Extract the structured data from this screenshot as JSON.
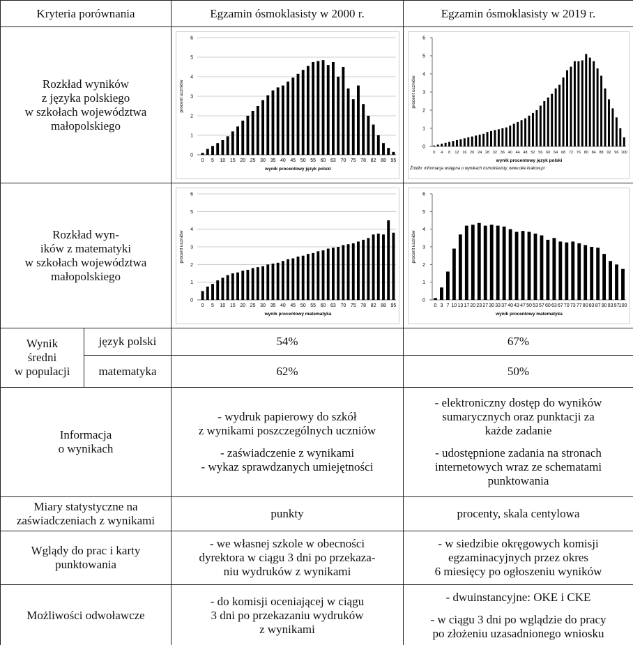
{
  "table": {
    "header": [
      "Kryteria porównania",
      "Egzamin ósmoklasisty w 2000 r.",
      "Egzamin ósmoklasisty w 2019 r."
    ],
    "chart_rows": [
      {
        "label": [
          "Rozkład wyników",
          "z języka polskiego",
          "w szkołach województwa",
          "małopolskiego"
        ]
      },
      {
        "label": [
          "Rozkład wyn-",
          "ików z matematyki",
          "w szkołach województwa",
          "małopolskiego"
        ]
      }
    ],
    "average": {
      "label": [
        "Wynik",
        "średni",
        "w populacji"
      ],
      "rows": [
        {
          "label": "język polski",
          "v2000": "54%",
          "v2019": "67%"
        },
        {
          "label": "matematyka",
          "v2000": "62%",
          "v2019": "50%"
        }
      ]
    },
    "rows": [
      {
        "label": [
          "Informacja",
          "o wynikach"
        ],
        "c2000": [
          [
            "- wydruk papierowy do szkół",
            "z wynikami poszczególnych uczniów"
          ],
          [
            "- zaświadczenie z wynikami",
            "- wykaz sprawdzanych umiejętności"
          ]
        ],
        "c2019": [
          [
            "- elektroniczny dostęp do wyników",
            "sumarycznych oraz punktacji za",
            "każde zadanie"
          ],
          [
            "- udostępnione zadania na stronach",
            "internetowych wraz ze schematami",
            "punktowania"
          ]
        ]
      },
      {
        "label": [
          "Miary statystyczne na",
          "zaświadczeniach z wynikami"
        ],
        "c2000": [
          [
            "punkty"
          ]
        ],
        "c2019": [
          [
            "procenty, skala centylowa"
          ]
        ]
      },
      {
        "label": [
          "Wglądy do prac i karty",
          "punktowania"
        ],
        "c2000": [
          [
            "- we własnej szkole w obecności",
            "dyrektora w ciągu 3 dni po przekaza-",
            "niu wydruków z wynikami"
          ]
        ],
        "c2019": [
          [
            "- w siedzibie okręgowych komisji",
            "egzaminacyjnych przez okres",
            "6 miesięcy po ogłoszeniu wyników"
          ]
        ]
      },
      {
        "label": [
          "Możliwości odwoławcze"
        ],
        "c2000": [
          [
            "- do komisji oceniającej w ciągu",
            "3 dni po przekazaniu wydruków",
            "z wynikami"
          ]
        ],
        "c2019": [
          [
            "- dwuinstancyjne: OKE i CKE"
          ],
          [
            "- w ciągu 3 dni po wglądzie do pracy",
            "po złożeniu uzasadnionego wniosku"
          ]
        ]
      }
    ]
  },
  "chart_data": [
    {
      "type": "bar",
      "color": "#000000",
      "grid": true,
      "ylim": [
        0,
        6
      ],
      "yticks": [
        0,
        1,
        2,
        3,
        4,
        5,
        6
      ],
      "y_label": "procent uczniów",
      "x_label": "wynik procentowy język polski",
      "categories": [
        "0",
        null,
        "5",
        null,
        "10",
        null,
        "15",
        null,
        "20",
        null,
        "25",
        null,
        "30",
        null,
        "35",
        null,
        "40",
        null,
        "45",
        null,
        "50",
        null,
        "55",
        null,
        "60",
        null,
        "63",
        null,
        "70",
        null,
        "75",
        null,
        "78",
        null,
        "82",
        null,
        "88",
        null,
        "95"
      ],
      "values": [
        0.1,
        0.3,
        0.45,
        0.6,
        0.75,
        0.95,
        1.2,
        1.45,
        1.75,
        2.0,
        2.25,
        2.5,
        2.8,
        3.05,
        3.3,
        3.45,
        3.55,
        3.75,
        3.95,
        4.15,
        4.35,
        4.55,
        4.75,
        4.8,
        4.85,
        4.6,
        4.75,
        4.0,
        4.5,
        3.4,
        2.85,
        3.55,
        2.6,
        2.0,
        1.55,
        1.0,
        0.6,
        0.35,
        0.15
      ]
    },
    {
      "type": "bar",
      "color": "#000000",
      "grid": false,
      "ylim": [
        0,
        6
      ],
      "yticks": [
        0,
        1,
        2,
        3,
        4,
        5,
        6
      ],
      "y_label": "procent uczniów",
      "x_label": "wynik procentowy język polski",
      "source": "Źródło: informacja wstępna o wynikach ósmoklasisty, www.oke.krakow.pl",
      "categories": [
        "0",
        null,
        "4",
        null,
        "8",
        null,
        "12",
        null,
        "16",
        null,
        "20",
        null,
        "24",
        null,
        "28",
        null,
        "32",
        null,
        "36",
        null,
        "40",
        null,
        "44",
        null,
        "48",
        null,
        "52",
        null,
        "56",
        null,
        "60",
        null,
        "64",
        null,
        "68",
        null,
        "72",
        null,
        "76",
        null,
        "80",
        null,
        "84",
        null,
        "88",
        null,
        "92",
        null,
        "96",
        null,
        "100"
      ],
      "values": [
        0.05,
        0.1,
        0.15,
        0.2,
        0.25,
        0.3,
        0.35,
        0.4,
        0.45,
        0.5,
        0.55,
        0.6,
        0.65,
        0.7,
        0.8,
        0.85,
        0.9,
        0.95,
        1.0,
        1.05,
        1.15,
        1.25,
        1.35,
        1.45,
        1.55,
        1.7,
        1.85,
        2.0,
        2.25,
        2.5,
        2.7,
        2.9,
        3.2,
        3.4,
        3.8,
        4.2,
        4.4,
        4.7,
        4.7,
        4.75,
        5.1,
        4.9,
        4.7,
        4.3,
        3.9,
        3.2,
        2.6,
        2.1,
        1.6,
        1.0,
        0.5
      ]
    },
    {
      "type": "bar",
      "color": "#000000",
      "grid": true,
      "ylim": [
        0,
        6
      ],
      "yticks": [
        0,
        1,
        2,
        3,
        4,
        5,
        6
      ],
      "y_label": "procent uczniów",
      "x_label": "wynik procentowy  matematyka",
      "categories": [
        "0",
        null,
        "5",
        null,
        "10",
        null,
        "15",
        null,
        "20",
        null,
        "25",
        null,
        "30",
        null,
        "35",
        null,
        "40",
        null,
        "45",
        null,
        "50",
        null,
        "55",
        null,
        "60",
        null,
        "63",
        null,
        "70",
        null,
        "75",
        null,
        "78",
        null,
        "82",
        null,
        "88",
        null,
        "95"
      ],
      "values": [
        0.5,
        0.75,
        0.9,
        1.1,
        1.25,
        1.4,
        1.5,
        1.55,
        1.65,
        1.7,
        1.8,
        1.85,
        1.9,
        2.0,
        2.05,
        2.1,
        2.2,
        2.3,
        2.35,
        2.45,
        2.5,
        2.6,
        2.65,
        2.75,
        2.8,
        2.9,
        2.95,
        3.0,
        3.1,
        3.15,
        3.2,
        3.3,
        3.4,
        3.5,
        3.7,
        3.75,
        3.7,
        4.5,
        3.8
      ]
    },
    {
      "type": "bar",
      "color": "#000000",
      "grid": false,
      "ylim": [
        0,
        6
      ],
      "yticks": [
        0,
        1,
        2,
        3,
        4,
        5,
        6
      ],
      "y_label": "procent uczniów",
      "x_label": "wynik procentowy matematyka",
      "categories": [
        "0",
        "3",
        "7",
        "10",
        "13",
        "17",
        "20",
        "23",
        "27",
        "30",
        "33",
        "37",
        "40",
        "43",
        "47",
        "50",
        "53",
        "57",
        "60",
        "63",
        "67",
        "70",
        "73",
        "77",
        "80",
        "83",
        "87",
        "90",
        "93",
        "97",
        "100"
      ],
      "values": [
        0.1,
        0.7,
        1.6,
        2.9,
        3.7,
        4.2,
        4.25,
        4.35,
        4.2,
        4.25,
        4.2,
        4.15,
        4.0,
        3.85,
        3.9,
        3.85,
        3.75,
        3.65,
        3.4,
        3.5,
        3.3,
        3.25,
        3.3,
        3.2,
        3.1,
        3.0,
        2.95,
        2.6,
        2.2,
        2.0,
        1.75
      ]
    }
  ]
}
